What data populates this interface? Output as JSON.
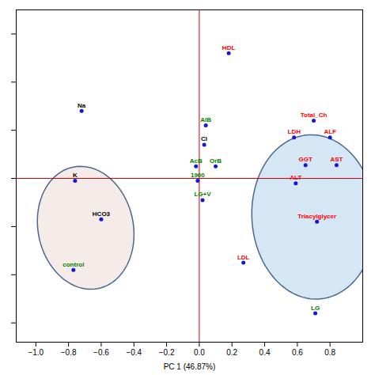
{
  "chart_data": {
    "type": "scatter",
    "xlabel": "PC 1 (46.87%)",
    "xlim": [
      -1.12,
      1.0
    ],
    "ylim": [
      -0.68,
      0.7
    ],
    "xticks": [
      {
        "value": -1.0,
        "label": "−1.0"
      },
      {
        "value": -0.8,
        "label": "−0.8"
      },
      {
        "value": -0.6,
        "label": "−0.6"
      },
      {
        "value": -0.4,
        "label": "−0.4"
      },
      {
        "value": -0.2,
        "label": "−0.2"
      },
      {
        "value": 0.0,
        "label": "0.0"
      },
      {
        "value": 0.2,
        "label": "0.2"
      },
      {
        "value": 0.4,
        "label": "0.4"
      },
      {
        "value": 0.6,
        "label": "0.6"
      },
      {
        "value": 0.8,
        "label": "0.8"
      }
    ],
    "yticks": [
      -0.6,
      -0.4,
      -0.2,
      0.0,
      0.2,
      0.4,
      0.6
    ],
    "tick_labels": "x",
    "color": "#1515dd",
    "points": [
      {
        "label": "HDL",
        "x": 0.18,
        "y": 0.52,
        "color": "red"
      },
      {
        "label": "AlB",
        "x": 0.04,
        "y": 0.22,
        "color": "green"
      },
      {
        "label": "Cl",
        "x": 0.03,
        "y": 0.14,
        "color": "black"
      },
      {
        "label": "AcB",
        "x": -0.02,
        "y": 0.05,
        "color": "green"
      },
      {
        "label": "OrB",
        "x": 0.1,
        "y": 0.05,
        "color": "green"
      },
      {
        "label": "1900",
        "x": -0.01,
        "y": -0.01,
        "color": "green"
      },
      {
        "label": "LG+V",
        "x": 0.02,
        "y": -0.09,
        "color": "green"
      },
      {
        "label": "Na",
        "x": -0.72,
        "y": 0.28,
        "color": "black"
      },
      {
        "label": "K",
        "x": -0.76,
        "y": -0.01,
        "color": "black"
      },
      {
        "label": "HCO3",
        "x": -0.6,
        "y": -0.17,
        "color": "black"
      },
      {
        "label": "control",
        "x": -0.77,
        "y": -0.38,
        "color": "green"
      },
      {
        "label": "Total_Ch",
        "x": 0.7,
        "y": 0.24,
        "color": "red"
      },
      {
        "label": "LDH",
        "x": 0.58,
        "y": 0.17,
        "color": "red"
      },
      {
        "label": "ALF",
        "x": 0.8,
        "y": 0.17,
        "color": "red"
      },
      {
        "label": "GGT",
        "x": 0.65,
        "y": 0.055,
        "color": "red"
      },
      {
        "label": "AST",
        "x": 0.84,
        "y": 0.055,
        "color": "red"
      },
      {
        "label": "ALT",
        "x": 0.59,
        "y": -0.02,
        "color": "red"
      },
      {
        "label": "Triacylglycer",
        "x": 0.72,
        "y": -0.18,
        "color": "red"
      },
      {
        "label": "LDL",
        "x": 0.27,
        "y": -0.35,
        "color": "red"
      },
      {
        "label": "LG",
        "x": 0.71,
        "y": -0.56,
        "color": "green"
      }
    ],
    "ellipses": [
      {
        "cx": -0.695,
        "cy": -0.205,
        "width": 0.6,
        "height": 0.5,
        "angle": -18,
        "fill": "#f5ebe8",
        "color": "#4a6890"
      },
      {
        "cx": 0.7,
        "cy": -0.16,
        "width": 0.76,
        "height": 0.68,
        "angle": -10,
        "fill": "#d5e6f5",
        "color": "#4a6890"
      }
    ],
    "crosshair": {
      "x": 0,
      "y": 0,
      "color": "#cc0000"
    }
  }
}
